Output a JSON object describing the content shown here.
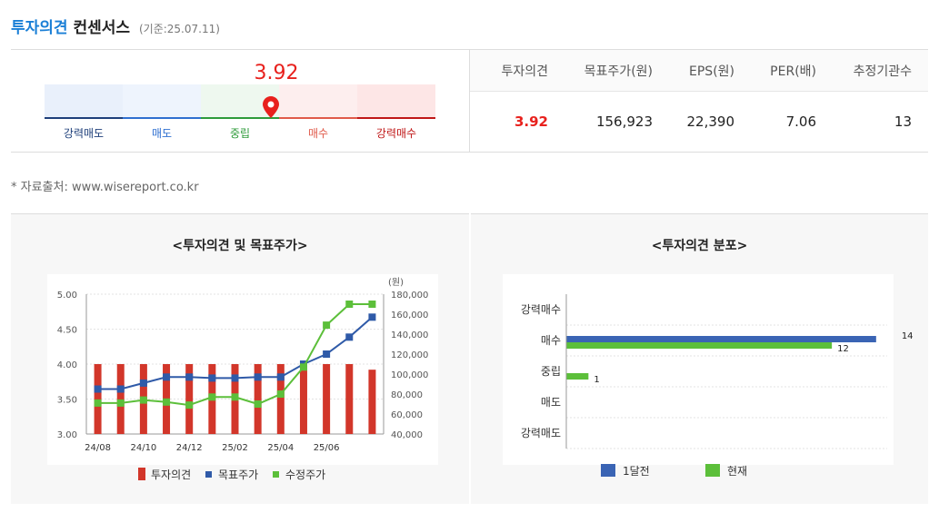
{
  "header": {
    "title_blue": "투자의견",
    "title_black": "컨센서스",
    "date": "(기준:25.07.11)"
  },
  "gauge": {
    "value": "3.92",
    "value_num": 3.92,
    "labels": [
      "강력매도",
      "매도",
      "중립",
      "매수",
      "강력매수"
    ],
    "label_colors": [
      "#1e3f7a",
      "#2f6fd0",
      "#2e9b3a",
      "#e05a4a",
      "#c01818"
    ],
    "bg_colors": [
      "#e9f0fb",
      "#eef4fd",
      "#eef8ef",
      "#fdeeee",
      "#fde6e6"
    ]
  },
  "table": {
    "headers": [
      "투자의견",
      "목표주가(원)",
      "EPS(원)",
      "PER(배)",
      "추정기관수"
    ],
    "values": [
      "3.92",
      "156,923",
      "22,390",
      "7.06",
      "13"
    ]
  },
  "source": "* 자료출처: www.wisereport.co.kr",
  "chart_data": [
    {
      "type": "bar+line",
      "title": "<투자의견 및 목표주가>",
      "x_labels": [
        "24/08",
        "24/10",
        "24/12",
        "25/02",
        "25/04",
        "25/06"
      ],
      "y_left": {
        "ticks": [
          "5.00",
          "4.50",
          "4.00",
          "3.50",
          "3.00"
        ],
        "range": [
          3.0,
          5.0
        ]
      },
      "y_right": {
        "unit": "(원)",
        "ticks": [
          "180,000",
          "160,000",
          "140,000",
          "120,000",
          "100,000",
          "80,000",
          "60,000",
          "40,000"
        ],
        "range": [
          40000,
          180000
        ]
      },
      "series": [
        {
          "name": "투자의견",
          "kind": "bar",
          "color": "#d2362a",
          "values": [
            4.0,
            4.0,
            4.0,
            4.0,
            4.0,
            4.0,
            4.0,
            4.0,
            4.0,
            4.0,
            4.0,
            4.0,
            3.92
          ]
        },
        {
          "name": "목표주가",
          "kind": "line",
          "color": "#2f5aa8",
          "values": [
            85000,
            85000,
            91000,
            97000,
            97000,
            96000,
            96000,
            97000,
            97000,
            110000,
            120000,
            137000,
            157000
          ]
        },
        {
          "name": "수정주가",
          "kind": "line",
          "color": "#5cbf3a",
          "values": [
            71000,
            71000,
            74000,
            72000,
            69000,
            77000,
            77000,
            70000,
            80000,
            107000,
            149000,
            170000,
            170000
          ]
        }
      ],
      "legend": [
        "투자의견",
        "목표주가",
        "수정주가"
      ]
    },
    {
      "type": "bar-horizontal",
      "title": "<투자의견 분포>",
      "categories": [
        "강력매수",
        "매수",
        "중립",
        "매도",
        "강력매도"
      ],
      "series": [
        {
          "name": "1달전",
          "color": "#3a64b4",
          "values": [
            0,
            14,
            0,
            0,
            0
          ]
        },
        {
          "name": "현재",
          "color": "#5cbf3a",
          "values": [
            0,
            12,
            1,
            0,
            0
          ]
        }
      ],
      "xlim": [
        0,
        14.5
      ],
      "legend": [
        "1달전",
        "현재"
      ]
    }
  ]
}
